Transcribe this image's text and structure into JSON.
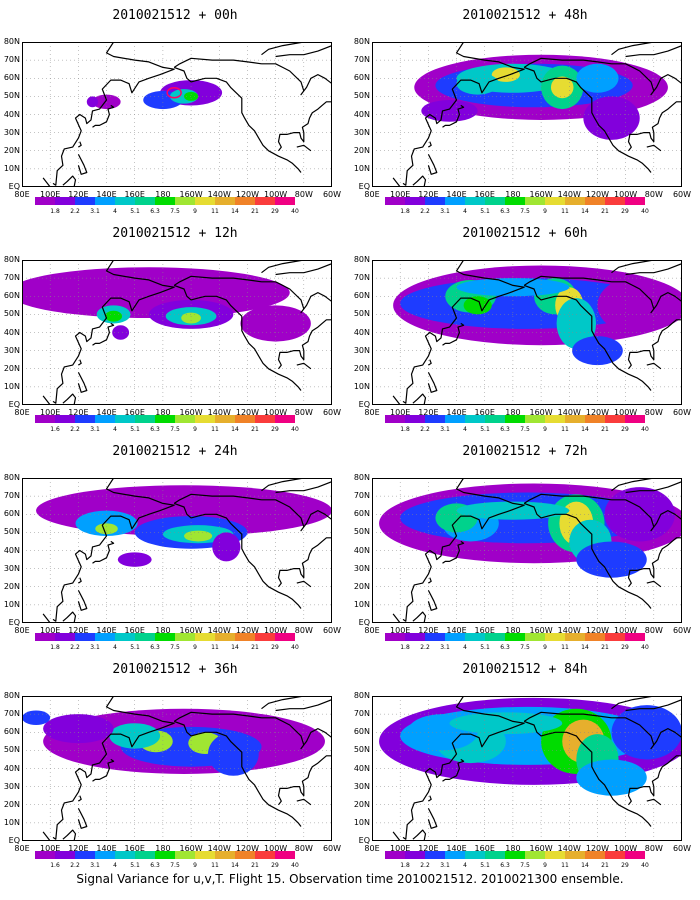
{
  "panels": [
    {
      "title": "2010021512 + 00h"
    },
    {
      "title": "2010021512 + 48h"
    },
    {
      "title": "2010021512 + 12h"
    },
    {
      "title": "2010021512 + 60h"
    },
    {
      "title": "2010021512 + 24h"
    },
    {
      "title": "2010021512 + 72h"
    },
    {
      "title": "2010021512 + 36h"
    },
    {
      "title": "2010021512 + 84h"
    }
  ],
  "lat_labels": [
    "80N",
    "70N",
    "60N",
    "50N",
    "40N",
    "30N",
    "20N",
    "10N",
    "EQ"
  ],
  "lon_labels": [
    "80E",
    "100E",
    "120E",
    "140E",
    "160E",
    "180",
    "160W",
    "140W",
    "120W",
    "100W",
    "80W",
    "60W"
  ],
  "colorbar": {
    "labels": [
      "1.8",
      "2.2",
      "3.1",
      "4",
      "5.1",
      "6.3",
      "7.5",
      "9",
      "11",
      "14",
      "21",
      "29",
      "40"
    ],
    "labels_alt": [
      "1.6",
      "2.2",
      "3.1",
      "4",
      "5.1",
      "6.3",
      "7.5",
      "9",
      "11",
      "14",
      "21",
      "29",
      "40"
    ],
    "colors": [
      "#a000c8",
      "#8200dc",
      "#1e3cff",
      "#00a0ff",
      "#00c8c8",
      "#00d28c",
      "#00dc00",
      "#a0e632",
      "#e6dc32",
      "#e6af2d",
      "#f08228",
      "#fa3c3c",
      "#f00082"
    ]
  },
  "caption": "Signal Variance for u,v,T. Flight 15. Observation time 2010021512. 2010021300 ensemble."
}
